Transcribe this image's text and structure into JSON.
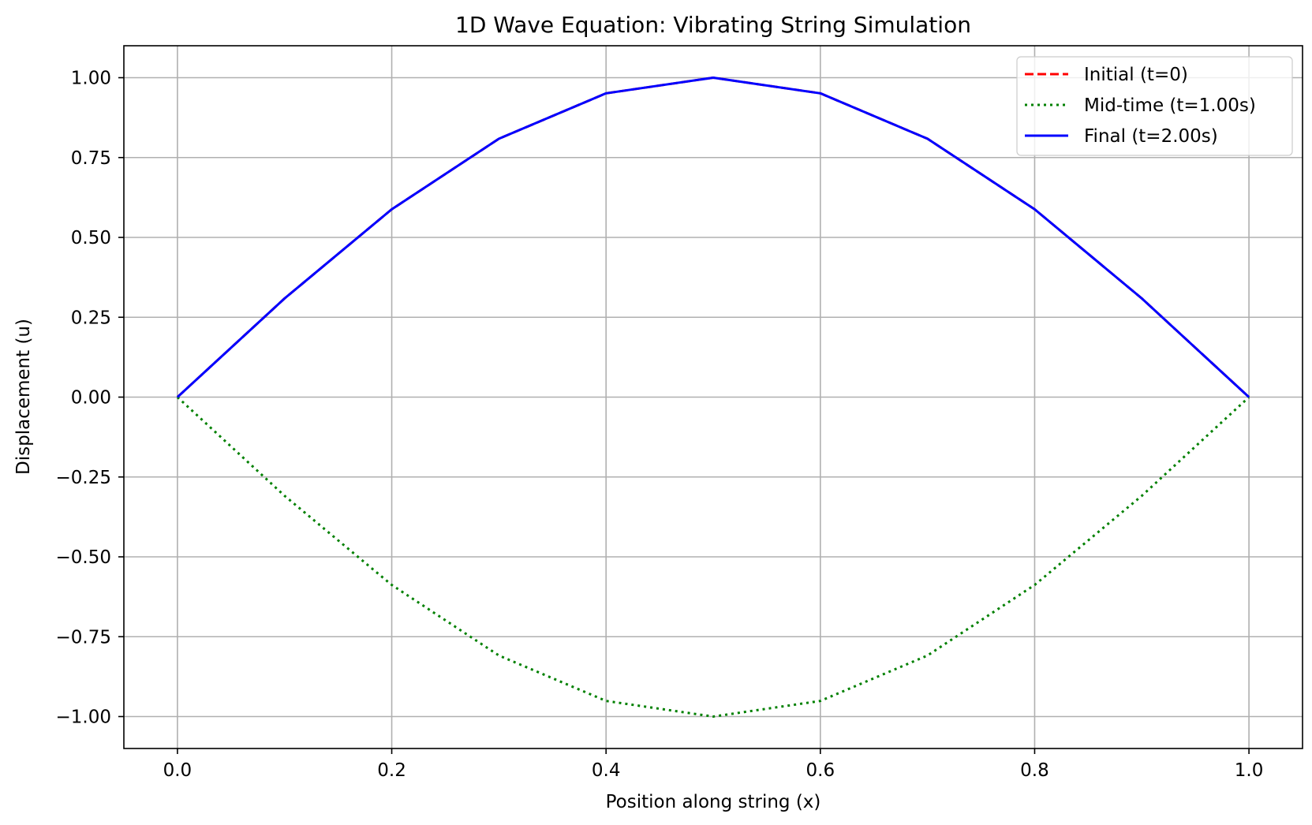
{
  "chart_data": {
    "type": "line",
    "title": "1D Wave Equation: Vibrating String Simulation",
    "xlabel": "Position along string (x)",
    "ylabel": "Displacement (u)",
    "xlim": [
      -0.05,
      1.05
    ],
    "ylim": [
      -1.1,
      1.1
    ],
    "xticks": [
      0.0,
      0.2,
      0.4,
      0.6,
      0.8,
      1.0
    ],
    "xtick_labels": [
      "0.0",
      "0.2",
      "0.4",
      "0.6",
      "0.8",
      "1.0"
    ],
    "yticks": [
      1.0,
      0.75,
      0.5,
      0.25,
      0.0,
      -0.25,
      -0.5,
      -0.75,
      -1.0
    ],
    "ytick_labels": [
      "1.00",
      "0.75",
      "0.50",
      "0.25",
      "0.00",
      "−0.25",
      "−0.50",
      "−0.75",
      "−1.00"
    ],
    "grid": true,
    "legend_position": "top-right",
    "x": [
      0.0,
      0.1,
      0.2,
      0.3,
      0.4,
      0.5,
      0.6,
      0.7,
      0.8,
      0.9,
      1.0
    ],
    "series": [
      {
        "name": "Initial (t=0)",
        "color": "#ff0000",
        "style": "dashed",
        "values": [
          0.0,
          0.309,
          0.588,
          0.809,
          0.951,
          1.0,
          0.951,
          0.809,
          0.588,
          0.309,
          0.0
        ]
      },
      {
        "name": "Mid-time (t=1.00s)",
        "color": "#008000",
        "style": "dotted",
        "values": [
          0.0,
          -0.309,
          -0.588,
          -0.809,
          -0.951,
          -1.0,
          -0.951,
          -0.809,
          -0.588,
          -0.309,
          0.0
        ]
      },
      {
        "name": "Final (t=2.00s)",
        "color": "#0000ff",
        "style": "solid",
        "values": [
          0.0,
          0.309,
          0.588,
          0.809,
          0.951,
          1.0,
          0.951,
          0.809,
          0.588,
          0.309,
          0.0
        ]
      }
    ]
  }
}
